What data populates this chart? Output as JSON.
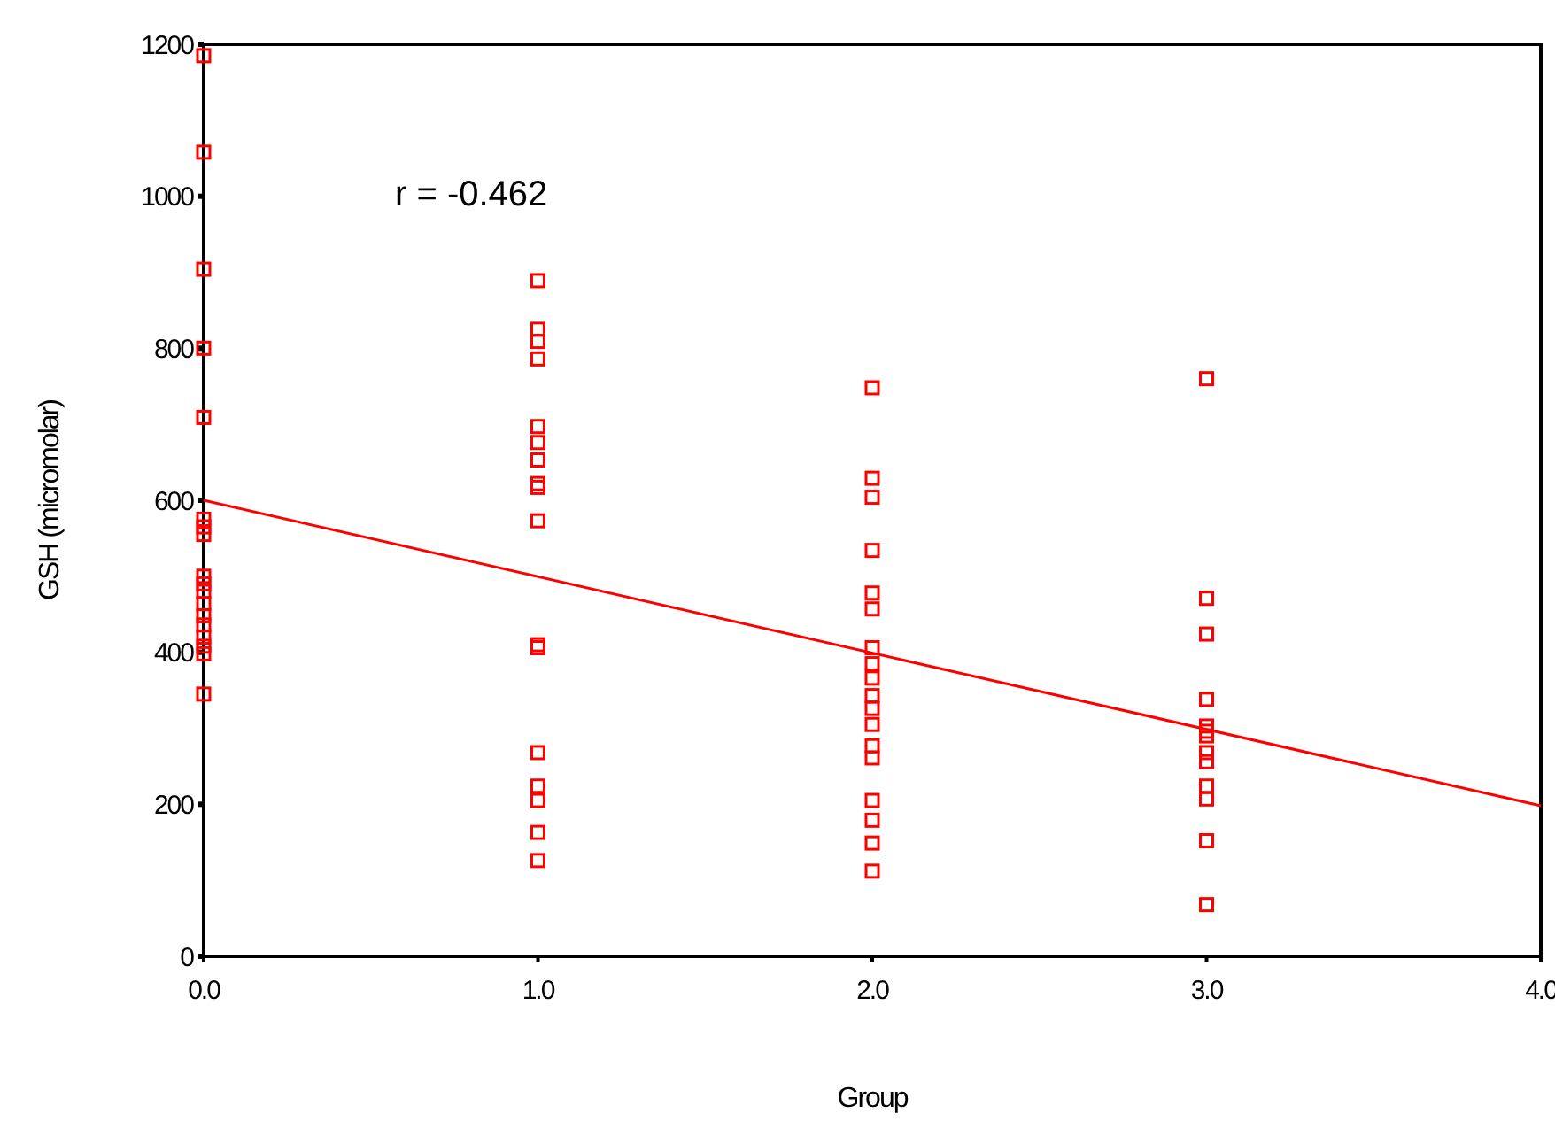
{
  "chart_data": {
    "type": "scatter",
    "xlabel": "Group",
    "ylabel": "GSH (micromolar)",
    "annotations": [
      "r = -0.462"
    ],
    "xlim": [
      0,
      4
    ],
    "ylim": [
      0,
      1200
    ],
    "xticks": [
      {
        "value": 0,
        "label": "0.0"
      },
      {
        "value": 1,
        "label": "1.0"
      },
      {
        "value": 2,
        "label": "2.0"
      },
      {
        "value": 3,
        "label": "3.0"
      },
      {
        "value": 4,
        "label": "4.0"
      }
    ],
    "yticks": [
      0,
      200,
      400,
      600,
      800,
      1000,
      1200
    ],
    "grid": false,
    "marker": "square",
    "series": [
      {
        "color": "#ff0000",
        "x": [
          0,
          0,
          0,
          0,
          0,
          0,
          0,
          0,
          0,
          0,
          0,
          0,
          0,
          0,
          0,
          0,
          0,
          0,
          1,
          1,
          1,
          1,
          1,
          1,
          1,
          1,
          1,
          1,
          1,
          1,
          1,
          1,
          1,
          1,
          1,
          2,
          2,
          2,
          2,
          2,
          2,
          2,
          2,
          2,
          2,
          2,
          2,
          2,
          2,
          2,
          2,
          2,
          2,
          3,
          3,
          3,
          3,
          3,
          3,
          3,
          3,
          3,
          3,
          3,
          3,
          3
        ],
        "values": [
          1185,
          1058,
          904,
          800,
          709,
          575,
          565,
          555,
          500,
          490,
          480,
          464,
          448,
          436,
          420,
          408,
          398,
          345,
          889,
          825,
          809,
          786,
          697,
          676,
          653,
          622,
          617,
          573,
          410,
          406,
          268,
          224,
          205,
          163,
          126,
          748,
          629,
          604,
          534,
          478,
          457,
          406,
          385,
          366,
          343,
          326,
          305,
          277,
          261,
          205,
          179,
          149,
          112,
          760,
          471,
          424,
          338,
          303,
          296,
          290,
          268,
          256,
          224,
          207,
          152,
          68
        ]
      },
      {
        "type": "line",
        "color": "#ff0000",
        "x": [
          0,
          4
        ],
        "values": [
          600,
          198
        ],
        "marker": "none",
        "line_style": "solid"
      }
    ]
  }
}
